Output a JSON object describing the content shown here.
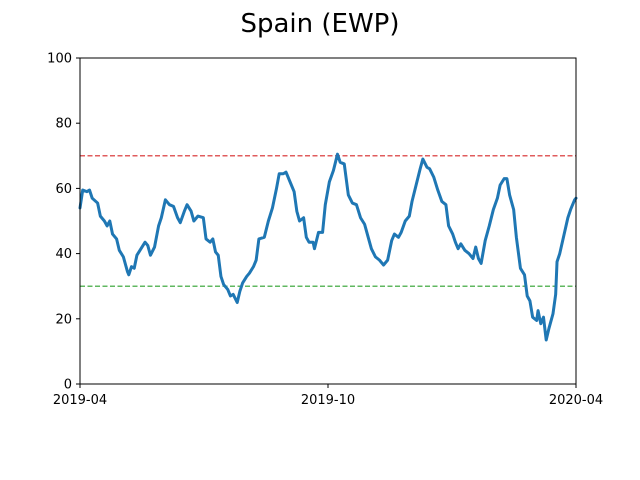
{
  "chart_data": {
    "type": "line",
    "title": "Spain (EWP)",
    "xlabel": "",
    "ylabel": "",
    "xlim": [
      "2019-04-01",
      "2020-04-01"
    ],
    "ylim": [
      0,
      100
    ],
    "x_ticks": [
      {
        "date": "2019-04-01",
        "label": "2019-04"
      },
      {
        "date": "2019-10-01",
        "label": "2019-10"
      },
      {
        "date": "2020-04-01",
        "label": "2020-04"
      }
    ],
    "y_ticks": [
      0,
      20,
      40,
      60,
      80,
      100
    ],
    "grid": false,
    "reference_lines": [
      {
        "y": 70,
        "color": "#d62728",
        "style": "dashed"
      },
      {
        "y": 30,
        "color": "#2ca02c",
        "style": "dashed"
      }
    ],
    "series": [
      {
        "color": "#1f77b4",
        "points": [
          [
            "2019-04-01",
            54
          ],
          [
            "2019-04-03",
            59.5
          ],
          [
            "2019-04-06",
            59
          ],
          [
            "2019-04-08",
            59.5
          ],
          [
            "2019-04-10",
            57
          ],
          [
            "2019-04-14",
            55.5
          ],
          [
            "2019-04-16",
            51.5
          ],
          [
            "2019-04-19",
            50
          ],
          [
            "2019-04-21",
            48.5
          ],
          [
            "2019-04-23",
            50
          ],
          [
            "2019-04-25",
            46
          ],
          [
            "2019-04-28",
            44.5
          ],
          [
            "2019-04-30",
            41
          ],
          [
            "2019-05-03",
            39
          ],
          [
            "2019-05-06",
            34.5
          ],
          [
            "2019-05-07",
            33.5
          ],
          [
            "2019-05-09",
            36
          ],
          [
            "2019-05-11",
            35.5
          ],
          [
            "2019-05-13",
            39.5
          ],
          [
            "2019-05-16",
            41.5
          ],
          [
            "2019-05-19",
            43.5
          ],
          [
            "2019-05-21",
            42.5
          ],
          [
            "2019-05-23",
            39.5
          ],
          [
            "2019-05-26",
            42
          ],
          [
            "2019-05-29",
            48.5
          ],
          [
            "2019-05-31",
            51
          ],
          [
            "2019-06-03",
            56.5
          ],
          [
            "2019-06-06",
            55
          ],
          [
            "2019-06-09",
            54.5
          ],
          [
            "2019-06-12",
            51
          ],
          [
            "2019-06-14",
            49.5
          ],
          [
            "2019-06-17",
            53
          ],
          [
            "2019-06-19",
            55
          ],
          [
            "2019-06-22",
            53
          ],
          [
            "2019-06-24",
            50
          ],
          [
            "2019-06-27",
            51.5
          ],
          [
            "2019-07-01",
            51
          ],
          [
            "2019-07-03",
            44.5
          ],
          [
            "2019-07-06",
            43.5
          ],
          [
            "2019-07-08",
            44.5
          ],
          [
            "2019-07-10",
            40.5
          ],
          [
            "2019-07-12",
            39.5
          ],
          [
            "2019-07-14",
            33
          ],
          [
            "2019-07-16",
            30.5
          ],
          [
            "2019-07-19",
            29
          ],
          [
            "2019-07-21",
            27
          ],
          [
            "2019-07-23",
            27.5
          ],
          [
            "2019-07-26",
            25
          ],
          [
            "2019-07-28",
            28.5
          ],
          [
            "2019-07-30",
            31
          ],
          [
            "2019-08-02",
            33
          ],
          [
            "2019-08-04",
            34
          ],
          [
            "2019-08-07",
            36
          ],
          [
            "2019-08-09",
            38
          ],
          [
            "2019-08-11",
            44.5
          ],
          [
            "2019-08-15",
            45
          ],
          [
            "2019-08-18",
            50
          ],
          [
            "2019-08-21",
            54
          ],
          [
            "2019-08-24",
            60
          ],
          [
            "2019-08-26",
            64.5
          ],
          [
            "2019-08-29",
            64.5
          ],
          [
            "2019-08-31",
            65
          ],
          [
            "2019-09-03",
            62
          ],
          [
            "2019-09-06",
            59
          ],
          [
            "2019-09-08",
            53
          ],
          [
            "2019-09-10",
            50
          ],
          [
            "2019-09-13",
            51
          ],
          [
            "2019-09-15",
            45
          ],
          [
            "2019-09-17",
            43.5
          ],
          [
            "2019-09-20",
            43.5
          ],
          [
            "2019-09-21",
            41.5
          ],
          [
            "2019-09-24",
            46.5
          ],
          [
            "2019-09-27",
            46.5
          ],
          [
            "2019-09-29",
            55
          ],
          [
            "2019-10-02",
            62
          ],
          [
            "2019-10-05",
            65.5
          ],
          [
            "2019-10-08",
            70.5
          ],
          [
            "2019-10-10",
            68
          ],
          [
            "2019-10-13",
            67.5
          ],
          [
            "2019-10-16",
            58
          ],
          [
            "2019-10-19",
            55.5
          ],
          [
            "2019-10-22",
            55
          ],
          [
            "2019-10-25",
            51
          ],
          [
            "2019-10-28",
            49
          ],
          [
            "2019-10-31",
            44.5
          ],
          [
            "2019-11-02",
            41.5
          ],
          [
            "2019-11-05",
            39
          ],
          [
            "2019-11-08",
            38
          ],
          [
            "2019-11-11",
            36.5
          ],
          [
            "2019-11-14",
            38
          ],
          [
            "2019-11-17",
            44
          ],
          [
            "2019-11-19",
            46
          ],
          [
            "2019-11-22",
            45
          ],
          [
            "2019-11-24",
            46.5
          ],
          [
            "2019-11-27",
            50
          ],
          [
            "2019-11-30",
            51.5
          ],
          [
            "2019-12-02",
            56
          ],
          [
            "2019-12-05",
            61
          ],
          [
            "2019-12-08",
            66
          ],
          [
            "2019-12-10",
            69
          ],
          [
            "2019-12-13",
            66.5
          ],
          [
            "2019-12-15",
            66
          ],
          [
            "2019-12-18",
            63.5
          ],
          [
            "2019-12-21",
            59.5
          ],
          [
            "2019-12-24",
            56
          ],
          [
            "2019-12-27",
            55
          ],
          [
            "2019-12-29",
            48.5
          ],
          [
            "2020-01-01",
            46
          ],
          [
            "2020-01-03",
            43.5
          ],
          [
            "2020-01-05",
            41.5
          ],
          [
            "2020-01-07",
            43
          ],
          [
            "2020-01-10",
            41
          ],
          [
            "2020-01-13",
            40
          ],
          [
            "2020-01-16",
            38.5
          ],
          [
            "2020-01-18",
            42
          ],
          [
            "2020-01-20",
            38.5
          ],
          [
            "2020-01-22",
            37
          ],
          [
            "2020-01-25",
            44
          ],
          [
            "2020-01-28",
            48.5
          ],
          [
            "2020-01-31",
            53.5
          ],
          [
            "2020-02-03",
            57
          ],
          [
            "2020-02-05",
            61
          ],
          [
            "2020-02-08",
            63
          ],
          [
            "2020-02-10",
            63
          ],
          [
            "2020-02-12",
            58
          ],
          [
            "2020-02-15",
            53.5
          ],
          [
            "2020-02-17",
            45
          ],
          [
            "2020-02-20",
            35.5
          ],
          [
            "2020-02-23",
            33.5
          ],
          [
            "2020-02-25",
            27
          ],
          [
            "2020-02-27",
            25.5
          ],
          [
            "2020-02-29",
            20.5
          ],
          [
            "2020-03-03",
            19.5
          ],
          [
            "2020-03-04",
            22.5
          ],
          [
            "2020-03-06",
            18.5
          ],
          [
            "2020-03-08",
            20.5
          ],
          [
            "2020-03-10",
            13.5
          ],
          [
            "2020-03-12",
            17
          ],
          [
            "2020-03-15",
            21.5
          ],
          [
            "2020-03-17",
            27.5
          ],
          [
            "2020-03-18",
            37.5
          ],
          [
            "2020-03-20",
            40
          ],
          [
            "2020-03-23",
            45.5
          ],
          [
            "2020-03-26",
            51
          ],
          [
            "2020-03-28",
            53.5
          ],
          [
            "2020-03-31",
            56.5
          ],
          [
            "2020-04-01",
            57
          ]
        ]
      }
    ]
  }
}
